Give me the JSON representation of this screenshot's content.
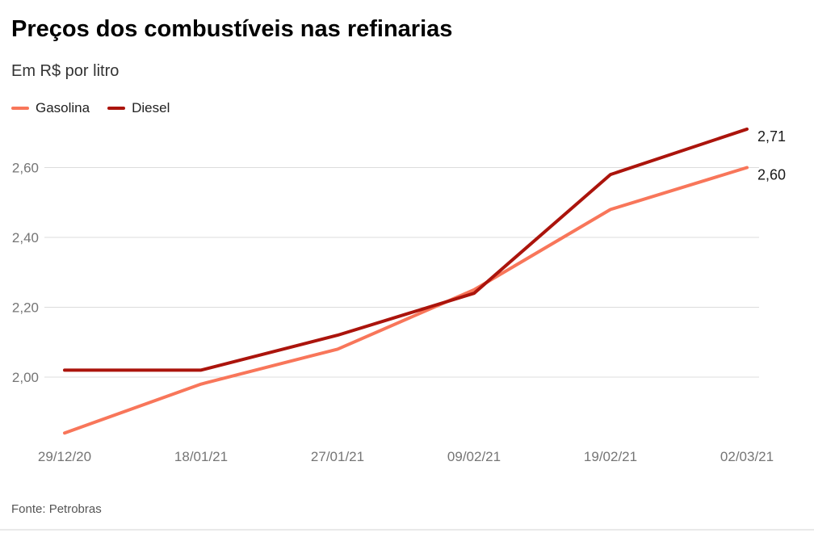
{
  "header": {
    "title": "Preços dos combustíveis nas refinarias",
    "subtitle": "Em R$ por litro"
  },
  "legend": [
    {
      "label": "Gasolina",
      "color": "#f8765a"
    },
    {
      "label": "Diesel",
      "color": "#ab140c"
    }
  ],
  "chart_data": {
    "type": "line",
    "x": [
      "29/12/20",
      "18/01/21",
      "27/01/21",
      "09/02/21",
      "19/02/21",
      "02/03/21"
    ],
    "series": [
      {
        "name": "Gasolina",
        "color": "#f8765a",
        "values": [
          1.84,
          1.98,
          2.08,
          2.25,
          2.48,
          2.6
        ],
        "end_label": "2,60"
      },
      {
        "name": "Diesel",
        "color": "#ab140c",
        "values": [
          2.02,
          2.02,
          2.12,
          2.24,
          2.58,
          2.71
        ],
        "end_label": "2,71"
      }
    ],
    "y_ticks": [
      {
        "value": 2.0,
        "label": "2,00"
      },
      {
        "value": 2.2,
        "label": "2,20"
      },
      {
        "value": 2.4,
        "label": "2,40"
      },
      {
        "value": 2.6,
        "label": "2,60"
      }
    ],
    "ylim": [
      1.8,
      2.78
    ],
    "grid": true,
    "legend_position": "top",
    "title": "Preços dos combustíveis nas refinarias",
    "ylabel": "Em R$ por litro"
  },
  "footer": {
    "source": "Fonte: Petrobras"
  }
}
